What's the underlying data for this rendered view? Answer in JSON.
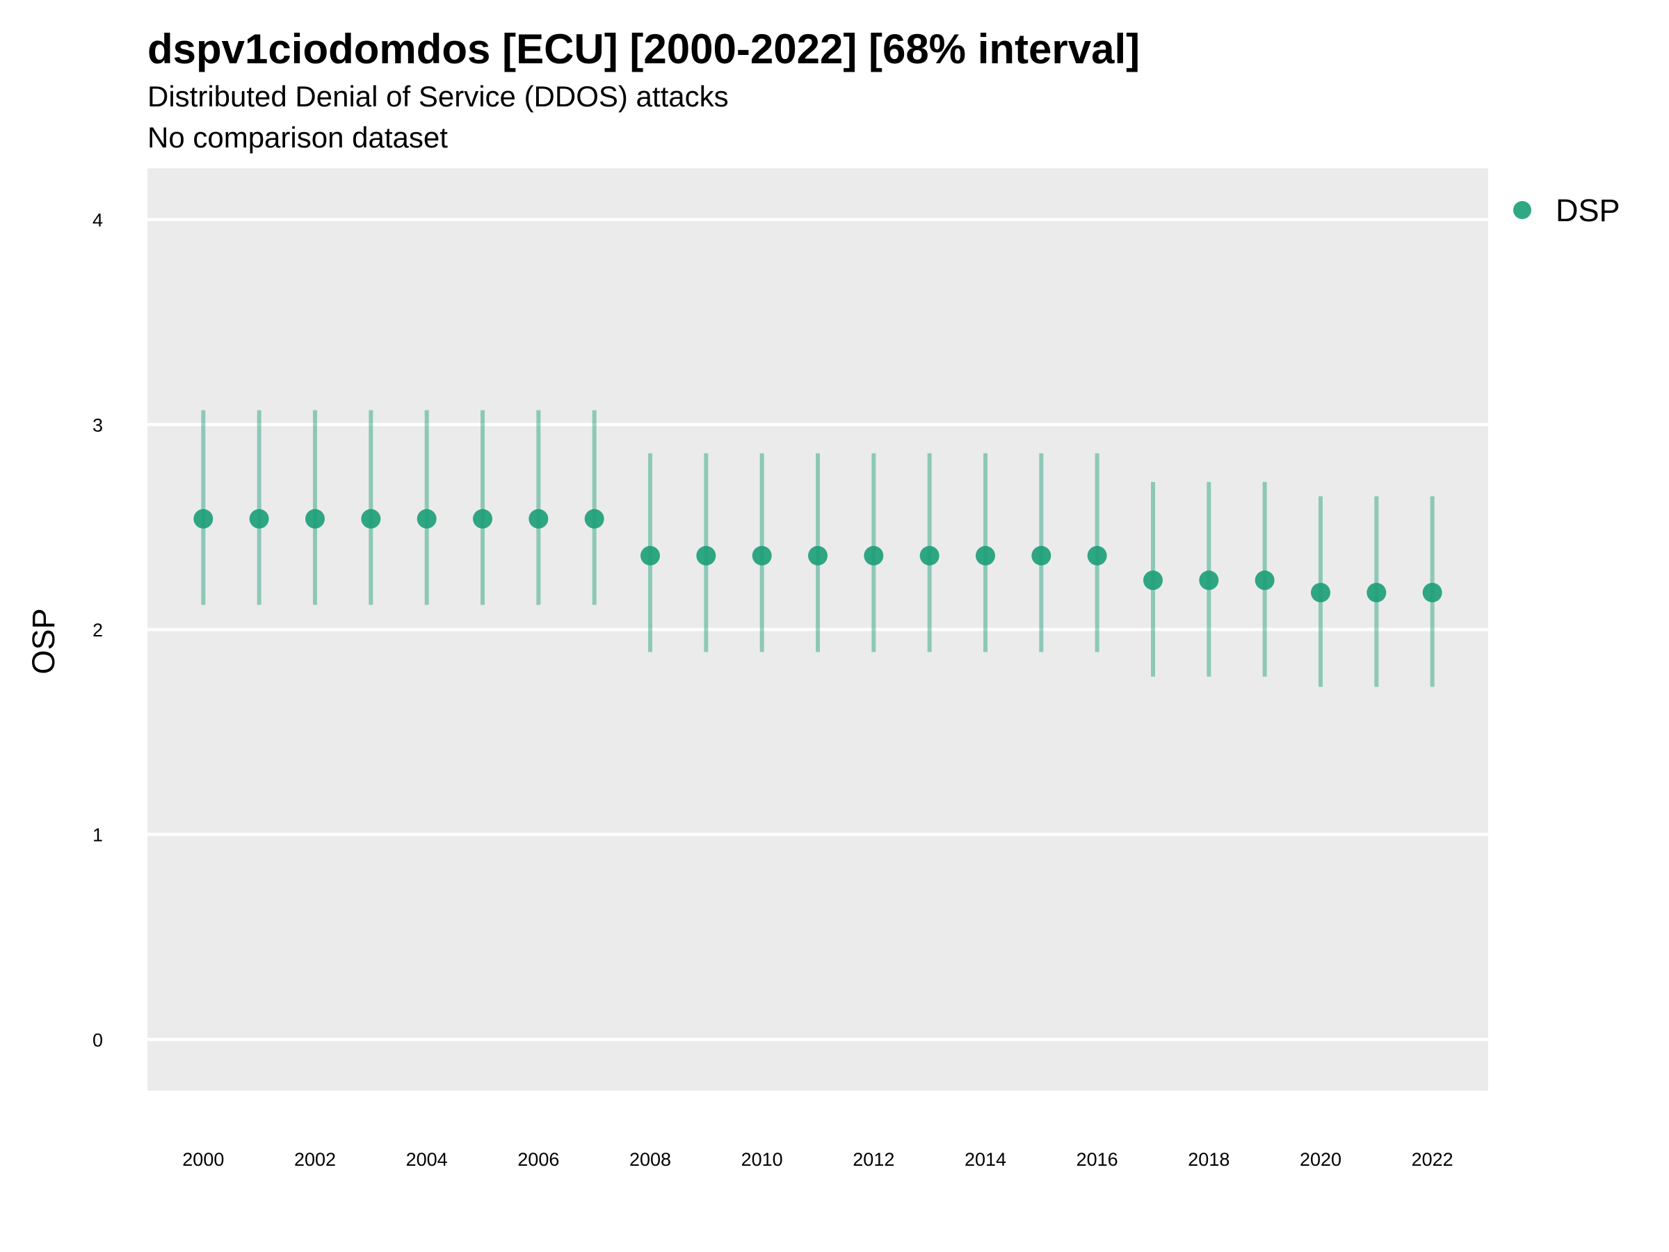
{
  "chart_data": {
    "type": "scatter",
    "title": "dspv1ciodomdos [ECU] [2000-2022] [68% interval]",
    "subtitle": "Distributed Denial of Service (DDOS) attacks",
    "subtitle2": "No comparison dataset",
    "xlabel": "",
    "ylabel": "OSP",
    "ylim": [
      -0.25,
      4.25
    ],
    "xlim": [
      1999,
      2023
    ],
    "yticks": [
      "0",
      "1",
      "2",
      "3",
      "4"
    ],
    "xticks": [
      "2000",
      "2002",
      "2004",
      "2006",
      "2008",
      "2010",
      "2012",
      "2014",
      "2016",
      "2018",
      "2020",
      "2022"
    ],
    "grid": true,
    "legend_position": "right",
    "series": [
      {
        "name": "DSP",
        "color": "#1b9e77",
        "x": [
          2000,
          2001,
          2002,
          2003,
          2004,
          2005,
          2006,
          2007,
          2008,
          2009,
          2010,
          2011,
          2012,
          2013,
          2014,
          2015,
          2016,
          2017,
          2018,
          2019,
          2020,
          2021,
          2022
        ],
        "y": [
          2.54,
          2.54,
          2.54,
          2.54,
          2.54,
          2.54,
          2.54,
          2.54,
          2.36,
          2.36,
          2.36,
          2.36,
          2.36,
          2.36,
          2.36,
          2.36,
          2.36,
          2.24,
          2.24,
          2.24,
          2.18,
          2.18,
          2.18
        ],
        "lower": [
          2.12,
          2.12,
          2.12,
          2.12,
          2.12,
          2.12,
          2.12,
          2.12,
          1.89,
          1.89,
          1.89,
          1.89,
          1.89,
          1.89,
          1.89,
          1.89,
          1.89,
          1.77,
          1.77,
          1.77,
          1.72,
          1.72,
          1.72
        ],
        "upper": [
          3.07,
          3.07,
          3.07,
          3.07,
          3.07,
          3.07,
          3.07,
          3.07,
          2.86,
          2.86,
          2.86,
          2.86,
          2.86,
          2.86,
          2.86,
          2.86,
          2.86,
          2.72,
          2.72,
          2.72,
          2.65,
          2.65,
          2.65
        ]
      }
    ]
  }
}
